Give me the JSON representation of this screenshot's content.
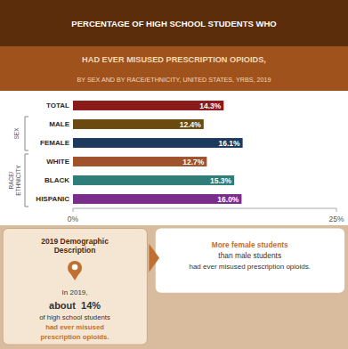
{
  "chart_data": {
    "type": "bar",
    "orientation": "horizontal",
    "title": "PERCENTAGE OF HIGH SCHOOL STUDENTS WHO",
    "subtitle": [
      "HAD EVER MISUSED PRESCRIPTION OPIOIDS,",
      "BY SEX AND BY RACE/ETHNICITY, UNITED STATES, YRBS, 2019"
    ],
    "categories": [
      "TOTAL",
      "MALE",
      "FEMALE",
      "WHITE",
      "BLACK",
      "HISPANIC"
    ],
    "values": [
      14.3,
      12.4,
      16.1,
      12.7,
      15.3,
      16.0
    ],
    "value_labels": [
      "14.3%",
      "12.4%",
      "16.1%",
      "12.7%",
      "15.3%",
      "16.0%"
    ],
    "colors": [
      "#8B1A1A",
      "#6B4A10",
      "#1C3A5E",
      "#A0522D",
      "#2E7D78",
      "#7B2D8B"
    ],
    "xlim": [
      0,
      25
    ],
    "xticks": [
      {
        "value": 0,
        "label": "0%"
      },
      {
        "value": 25,
        "label": "25%"
      }
    ],
    "grid": false,
    "data_labels": true,
    "annotations": [
      "SEX",
      "RACE/\nETHNICITY",
      "2019 Demographic\nDescription",
      "In 2019,",
      "about  14%",
      "of high school students",
      "had ever misused",
      "prescription opioids.",
      "More female students",
      "than male students",
      "had ever misused prescription opioids."
    ]
  }
}
